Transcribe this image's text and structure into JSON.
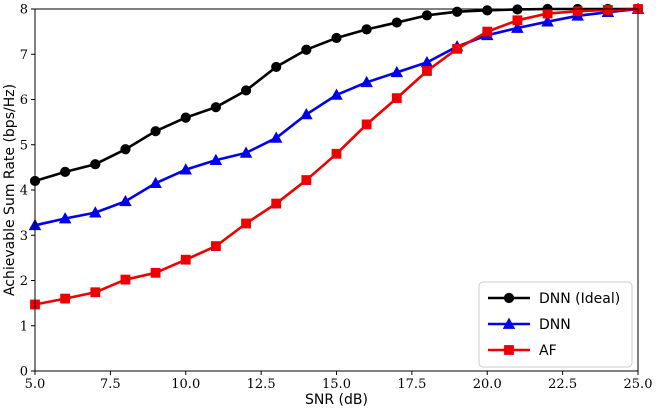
{
  "chart_data": {
    "type": "line",
    "xlabel": "SNR (dB)",
    "ylabel": "Achievable Sum Rate (bps/Hz)",
    "xlim": [
      5.0,
      25.0
    ],
    "ylim": [
      0,
      8
    ],
    "xticks": [
      5.0,
      7.5,
      10.0,
      12.5,
      15.0,
      17.5,
      20.0,
      22.5,
      25.0
    ],
    "xtick_labels": [
      "5.0",
      "7.5",
      "10.0",
      "12.5",
      "15.0",
      "17.5",
      "20.0",
      "22.5",
      "25.0"
    ],
    "yticks": [
      0,
      1,
      2,
      3,
      4,
      5,
      6,
      7,
      8
    ],
    "ytick_labels": [
      "0",
      "1",
      "2",
      "3",
      "4",
      "5",
      "6",
      "7",
      "8"
    ],
    "grid": false,
    "legend_position": "bottom-right",
    "x": [
      5,
      6,
      7,
      8,
      9,
      10,
      11,
      12,
      13,
      14,
      15,
      16,
      17,
      18,
      19,
      20,
      21,
      22,
      23,
      24,
      25
    ],
    "series": [
      {
        "name": "DNN (Ideal)",
        "color": "#000000",
        "marker": "circle",
        "values": [
          4.2,
          4.4,
          4.57,
          4.9,
          5.3,
          5.6,
          5.83,
          6.2,
          6.72,
          7.1,
          7.36,
          7.55,
          7.7,
          7.86,
          7.94,
          7.97,
          7.99,
          8.0,
          8.0,
          8.0,
          8.0
        ]
      },
      {
        "name": "DNN",
        "color": "#0000ee",
        "marker": "triangle",
        "values": [
          3.22,
          3.37,
          3.5,
          3.75,
          4.15,
          4.45,
          4.66,
          4.82,
          5.15,
          5.67,
          6.1,
          6.38,
          6.6,
          6.82,
          7.17,
          7.42,
          7.58,
          7.72,
          7.85,
          7.93,
          8.0
        ]
      },
      {
        "name": "AF",
        "color": "#ee0000",
        "marker": "square",
        "values": [
          1.47,
          1.6,
          1.74,
          2.02,
          2.17,
          2.46,
          2.76,
          3.26,
          3.7,
          4.22,
          4.8,
          5.45,
          6.03,
          6.63,
          7.12,
          7.5,
          7.75,
          7.9,
          7.95,
          7.98,
          8.0
        ]
      }
    ]
  }
}
